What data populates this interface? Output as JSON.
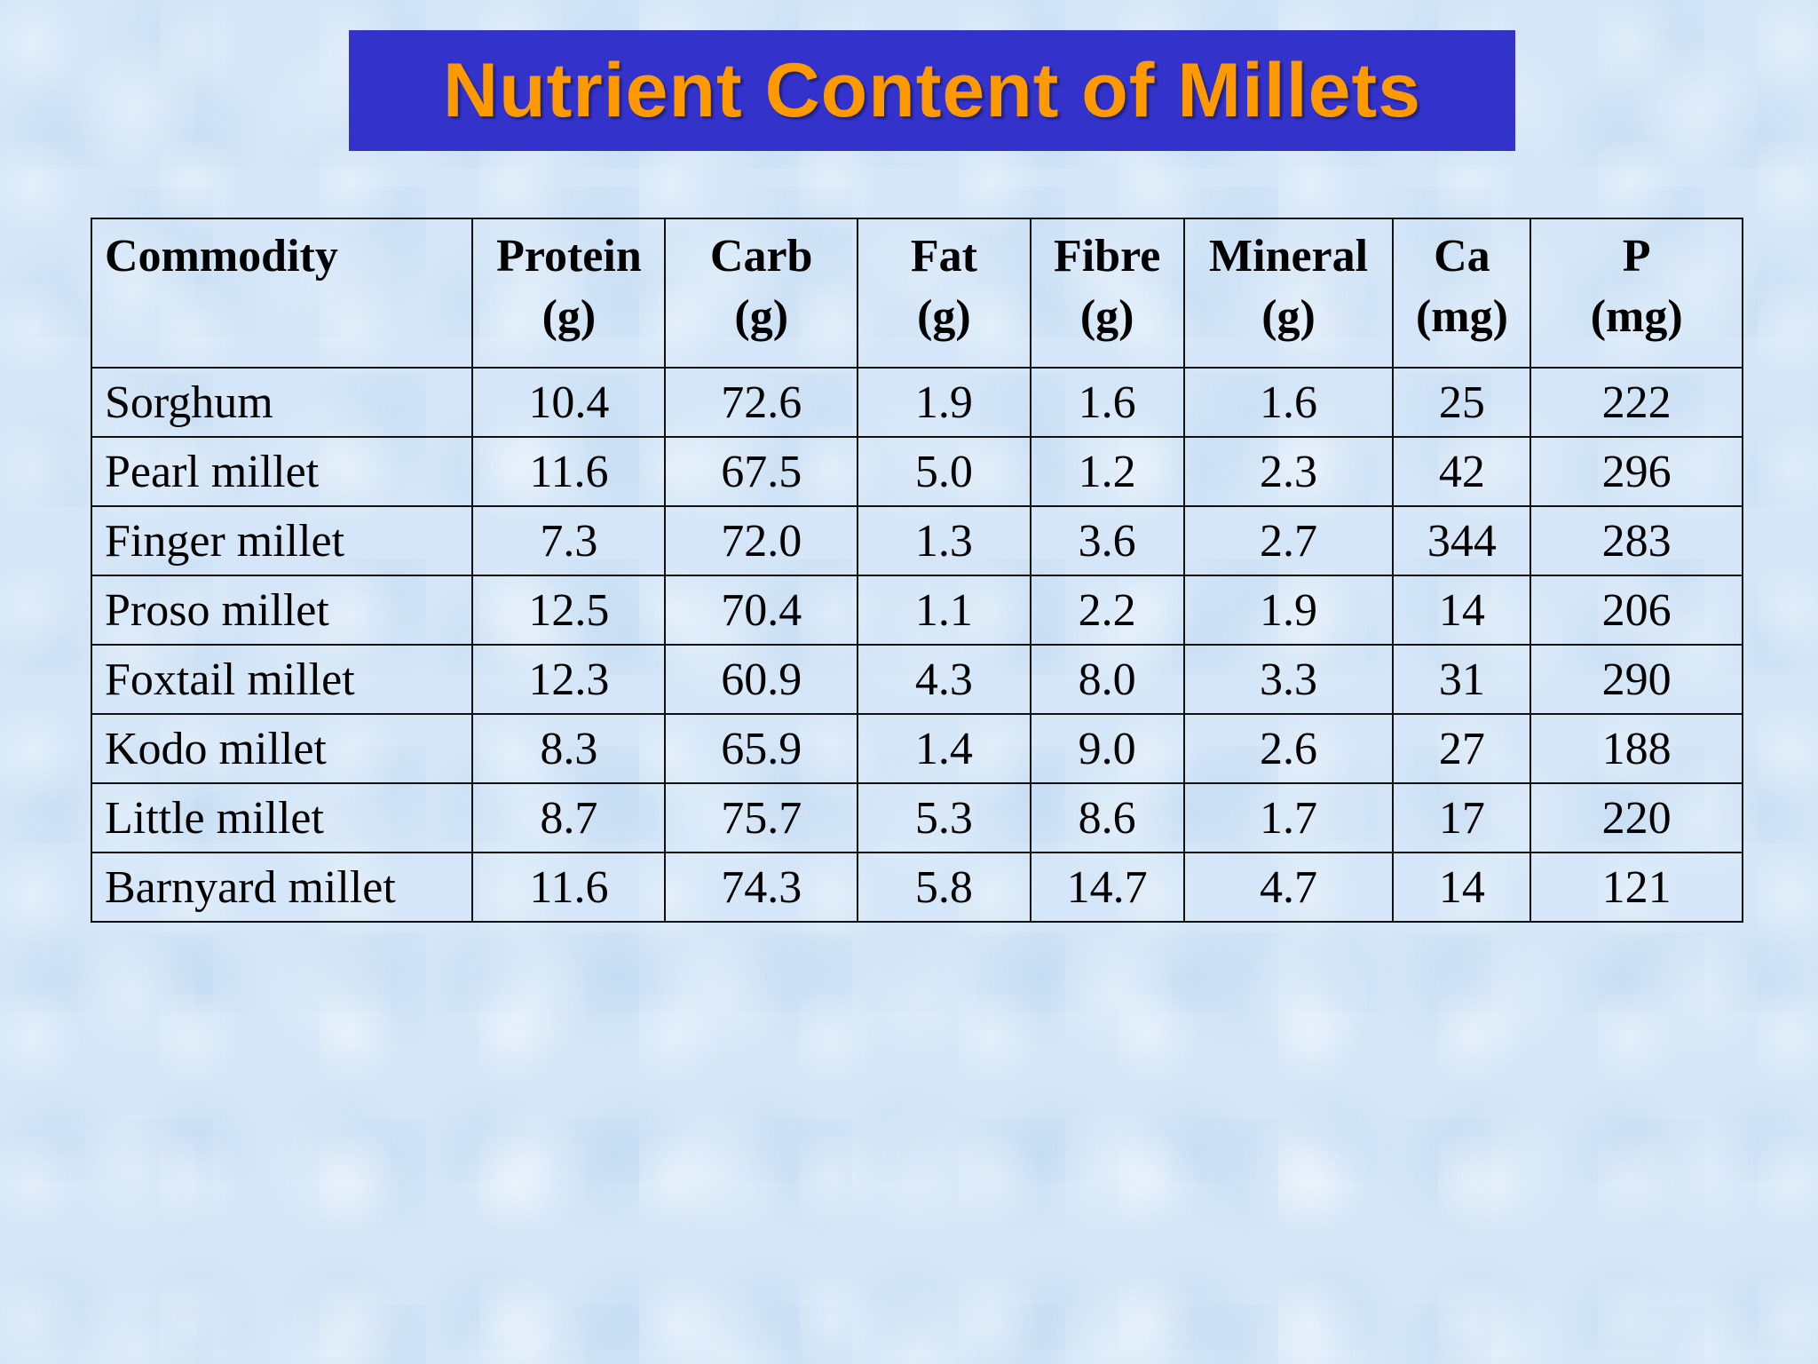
{
  "title": "Nutrient Content of Millets",
  "table": {
    "headers": [
      {
        "name": "Commodity",
        "unit": ""
      },
      {
        "name": "Protein",
        "unit": "(g)"
      },
      {
        "name": "Carb",
        "unit": "(g)"
      },
      {
        "name": "Fat",
        "unit": "(g)"
      },
      {
        "name": "Fibre",
        "unit": "(g)"
      },
      {
        "name": "Mineral",
        "unit": "(g)"
      },
      {
        "name": "Ca",
        "unit": "(mg)"
      },
      {
        "name": "P",
        "unit": "(mg)"
      }
    ],
    "rows": [
      [
        "Sorghum",
        "10.4",
        "72.6",
        "1.9",
        "1.6",
        "1.6",
        "25",
        "222"
      ],
      [
        "Pearl millet",
        "11.6",
        "67.5",
        "5.0",
        "1.2",
        "2.3",
        "42",
        "296"
      ],
      [
        "Finger millet",
        "7.3",
        "72.0",
        "1.3",
        "3.6",
        "2.7",
        "344",
        "283"
      ],
      [
        "Proso millet",
        "12.5",
        "70.4",
        "1.1",
        "2.2",
        "1.9",
        "14",
        "206"
      ],
      [
        "Foxtail millet",
        "12.3",
        "60.9",
        "4.3",
        "8.0",
        "3.3",
        "31",
        "290"
      ],
      [
        "Kodo millet",
        "8.3",
        "65.9",
        "1.4",
        "9.0",
        "2.6",
        "27",
        "188"
      ],
      [
        "Little millet",
        "8.7",
        "75.7",
        "5.3",
        "8.6",
        "1.7",
        "17",
        "220"
      ],
      [
        "Barnyard millet",
        "11.6",
        "74.3",
        "5.8",
        "14.7",
        "4.7",
        "14",
        "121"
      ]
    ]
  },
  "colors": {
    "title_bg": "#3333cc",
    "title_text": "#ff9900",
    "background": "#d4e6f7"
  }
}
